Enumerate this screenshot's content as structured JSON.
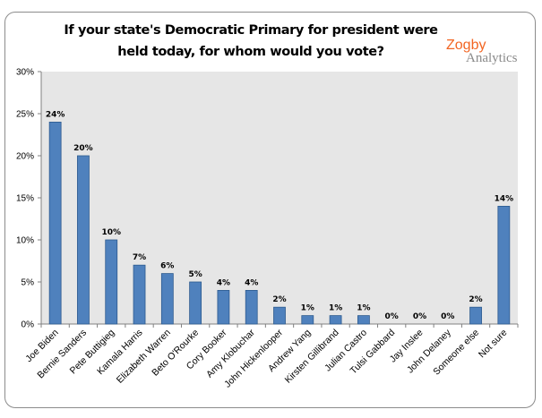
{
  "chart_data": {
    "type": "bar",
    "title": "If your state's Democratic Primary for president were held today, for whom would you vote?",
    "categories": [
      "Joe Biden",
      "Bernie Sanders",
      "Pete Buttigieg",
      "Kamala Harris",
      "Elizabeth Warren",
      "Beto O'Rourke",
      "Cory Booker",
      "Amy Klobuchar",
      "John Hickenlooper",
      "Andrew Yang",
      "Kirsten Gillibrand",
      "Julian Castro",
      "Tulsi Gabbard",
      "Jay Inslee",
      "John Delaney",
      "Someone else",
      "Not sure"
    ],
    "values": [
      24,
      20,
      10,
      7,
      6,
      5,
      4,
      4,
      2,
      1,
      1,
      1,
      0,
      0,
      0,
      2,
      14
    ],
    "data_labels": [
      "24%",
      "20%",
      "10%",
      "7%",
      "6%",
      "5%",
      "4%",
      "4%",
      "2%",
      "1%",
      "1%",
      "1%",
      "0%",
      "0%",
      "0%",
      "2%",
      "14%"
    ],
    "ylim": [
      0,
      30
    ],
    "yticks": [
      "0%",
      "5%",
      "10%",
      "15%",
      "20%",
      "25%",
      "30%"
    ],
    "xlabel": "",
    "ylabel": "",
    "grid": false,
    "legend": "none",
    "colors": {
      "bar": "#4f81bd",
      "bar_edge": "#2c5a8f",
      "plot_bg": "#e6e6e6"
    }
  },
  "logo": {
    "line1": "Zogby",
    "line2": "Analytics"
  }
}
